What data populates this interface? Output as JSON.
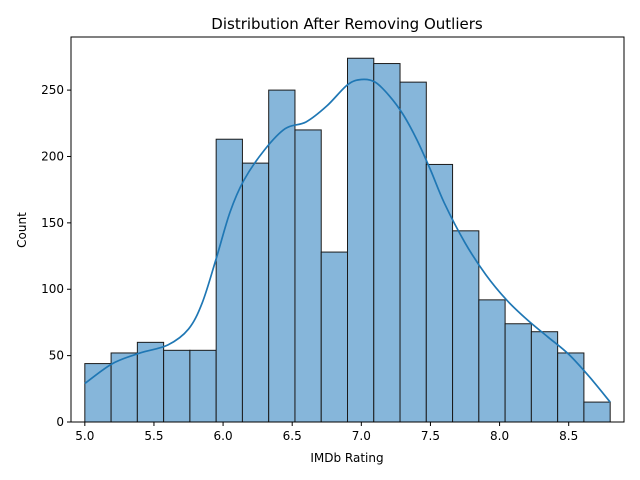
{
  "chart_data": {
    "type": "histogram",
    "title": "Distribution After Removing Outliers",
    "xlabel": "IMDb Rating",
    "ylabel": "Count",
    "xlim": [
      4.9,
      8.9
    ],
    "ylim": [
      0,
      290
    ],
    "xticks": [
      "5.0",
      "5.5",
      "6.0",
      "6.5",
      "7.0",
      "7.5",
      "8.0",
      "8.5"
    ],
    "yticks": [
      "0",
      "50",
      "100",
      "150",
      "200",
      "250"
    ],
    "bin_edges": [
      5.0,
      5.19,
      5.38,
      5.57,
      5.76,
      5.95,
      6.14,
      6.33,
      6.52,
      6.71,
      6.9,
      7.09,
      7.28,
      7.47,
      7.66,
      7.85,
      8.04,
      8.23,
      8.42,
      8.61,
      8.8
    ],
    "values": [
      44,
      52,
      60,
      54,
      54,
      213,
      195,
      250,
      220,
      128,
      274,
      270,
      256,
      194,
      144,
      92,
      74,
      68,
      52,
      15
    ],
    "kde_x": [
      5.0,
      5.2,
      5.4,
      5.6,
      5.75,
      5.85,
      5.95,
      6.05,
      6.15,
      6.3,
      6.45,
      6.6,
      6.75,
      6.9,
      7.0,
      7.1,
      7.2,
      7.3,
      7.4,
      7.5,
      7.6,
      7.75,
      7.9,
      8.05,
      8.2,
      8.35,
      8.5,
      8.65,
      8.8
    ],
    "kde_y": [
      29,
      44,
      52,
      58,
      70,
      90,
      123,
      158,
      182,
      205,
      221,
      226,
      238,
      254,
      258,
      256,
      246,
      232,
      213,
      190,
      165,
      135,
      111,
      92,
      77,
      64,
      51,
      34,
      15
    ],
    "bar_color": "#86b6da",
    "edge_color": "#1a1a1a",
    "line_color": "#1f77b4",
    "grid": false
  }
}
